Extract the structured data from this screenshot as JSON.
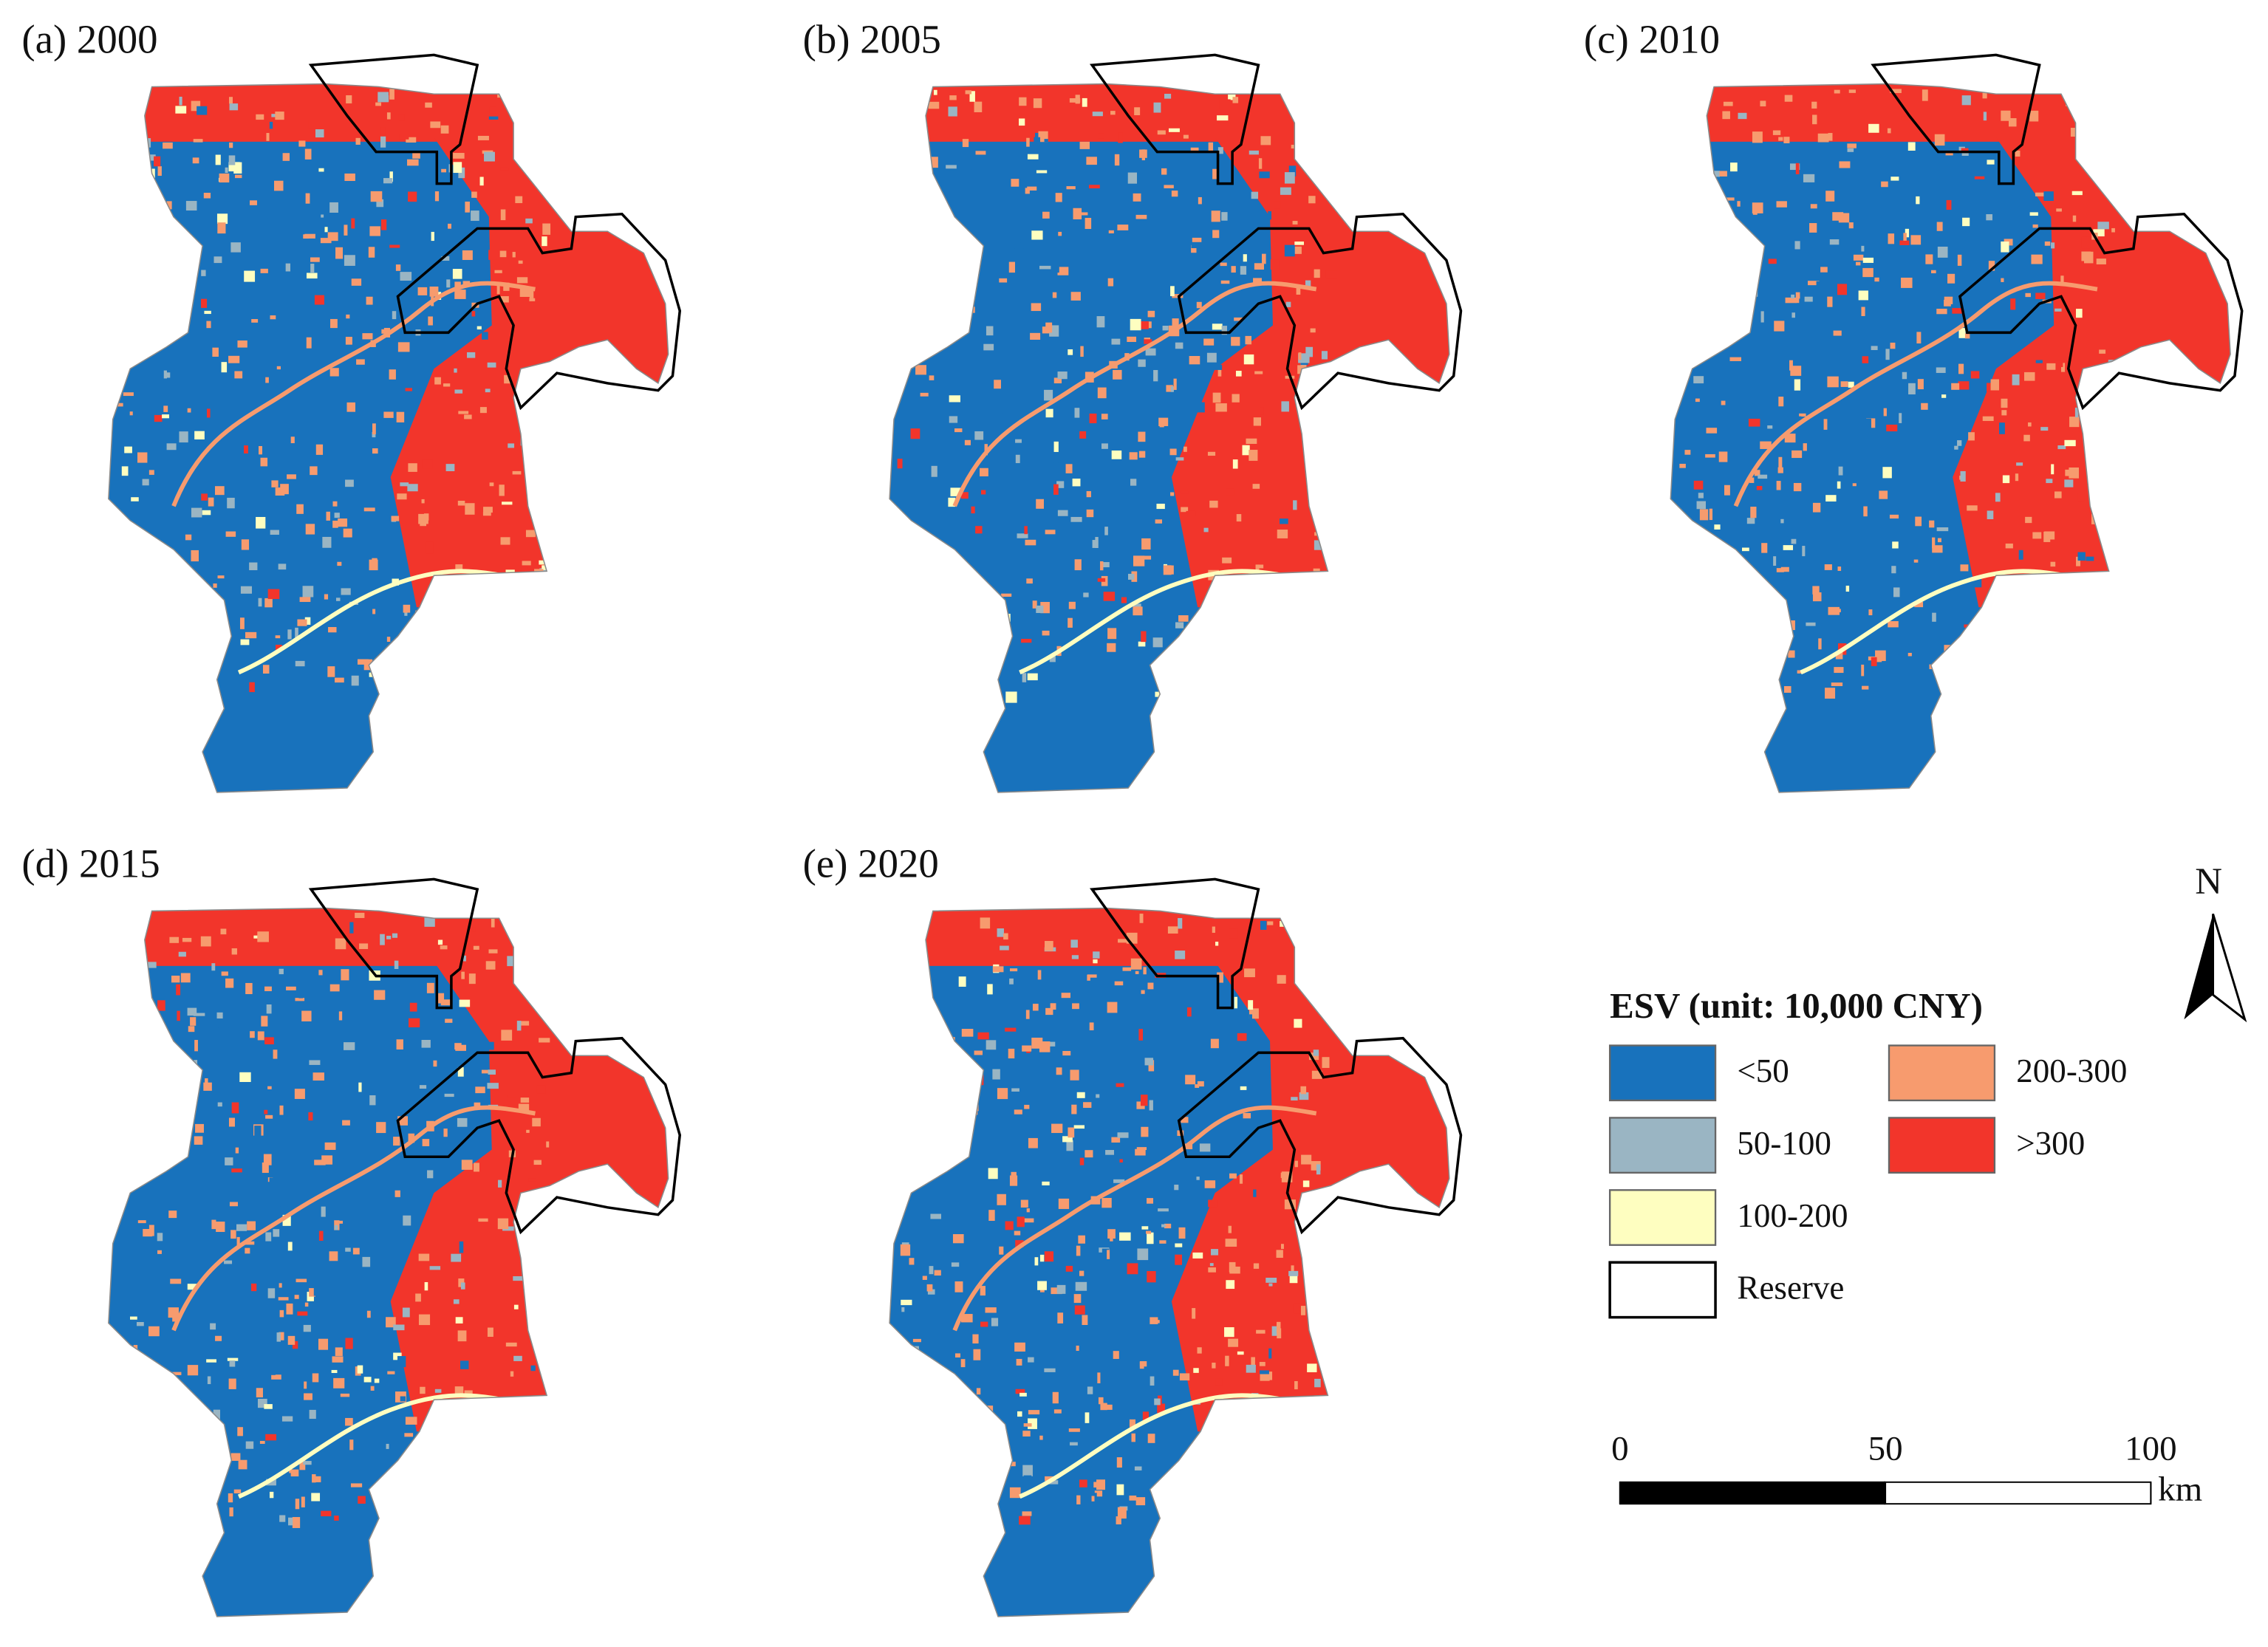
{
  "panels": [
    {
      "label": "(a) 2000"
    },
    {
      "label": "(b) 2005"
    },
    {
      "label": "(c) 2010"
    },
    {
      "label": "(d) 2015"
    },
    {
      "label": "(e) 2020"
    }
  ],
  "legend": {
    "title": "ESV (unit: 10,000 CNY)",
    "items": [
      {
        "label": "<50",
        "color": "#1872bc"
      },
      {
        "label": "50-100",
        "color": "#9ab5c3"
      },
      {
        "label": "100-200",
        "color": "#fefec0"
      },
      {
        "label": "200-300",
        "color": "#f79b6e"
      },
      {
        "label": ">300",
        "color": "#f2352b"
      },
      {
        "label": "Reserve",
        "color": "#ffffff"
      }
    ]
  },
  "north_arrow": "N",
  "scale_bar": {
    "ticks": [
      0,
      50,
      100
    ],
    "unit": "km"
  }
}
